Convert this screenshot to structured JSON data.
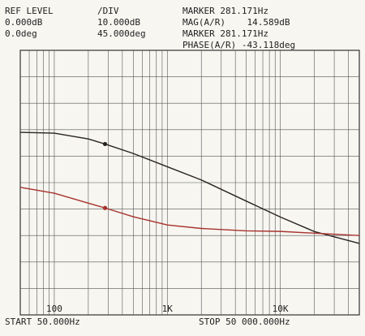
{
  "chart_data": {
    "type": "line",
    "header": [
      [
        {
          "text": "REF LEVEL",
          "color": "#222"
        },
        {
          "text": "/DIV",
          "color": "#222"
        },
        {
          "text": "MARKER 281.171Hz",
          "color": "#222"
        }
      ],
      [
        {
          "text": "0.000dB",
          "color": "#222"
        },
        {
          "text": "10.000dB",
          "color": "#222"
        },
        {
          "text": "MAG(A/R)    14.589dB",
          "color": "#222"
        }
      ],
      [
        {
          "text": "0.0deg",
          "color": "#a8322c"
        },
        {
          "text": "45.000deg",
          "color": "#a8322c"
        },
        {
          "text": "MARKER 281.171Hz",
          "color": "#a8322c"
        }
      ],
      [
        {
          "text": "PHASE(A/R) -43.118deg",
          "color": "#a8322c"
        }
      ]
    ],
    "start_label": "START 50.000Hz",
    "stop_label": "STOP 50 000.000Hz",
    "xscale": "log",
    "xlim": [
      50,
      50000
    ],
    "xticks": [
      {
        "value": 100,
        "label": "100"
      },
      {
        "value": 1000,
        "label": "1K"
      },
      {
        "value": 10000,
        "label": "10K"
      }
    ],
    "xgrid": [
      60,
      70,
      80,
      90,
      200,
      300,
      400,
      500,
      600,
      700,
      800,
      900,
      2000,
      3000,
      4000,
      5000,
      6000,
      7000,
      8000,
      9000,
      20000,
      30000,
      40000
    ],
    "ylim": [
      -50,
      50
    ],
    "ygrid": [
      -40,
      -30,
      -20,
      -10,
      0,
      10,
      20,
      30,
      40
    ],
    "y2lim": [
      -225,
      225
    ],
    "x": [
      50,
      100,
      200,
      281.171,
      500,
      1000,
      2000,
      5000,
      10000,
      20000,
      50000
    ],
    "marker_index": 3,
    "series": [
      {
        "name": "MAG(A/R)",
        "color": "#2a2323",
        "values": [
          19.0,
          18.7,
          16.5,
          14.589,
          11,
          6,
          1,
          -7,
          -13,
          -18.5,
          -23
        ]
      },
      {
        "name": "PHASE(A/R)",
        "color": "#a8322c",
        "axis": "y2",
        "values": [
          -8,
          -18,
          -35,
          -43.118,
          -58,
          -72,
          -78,
          -82,
          -83,
          -86,
          -90
        ]
      }
    ]
  }
}
